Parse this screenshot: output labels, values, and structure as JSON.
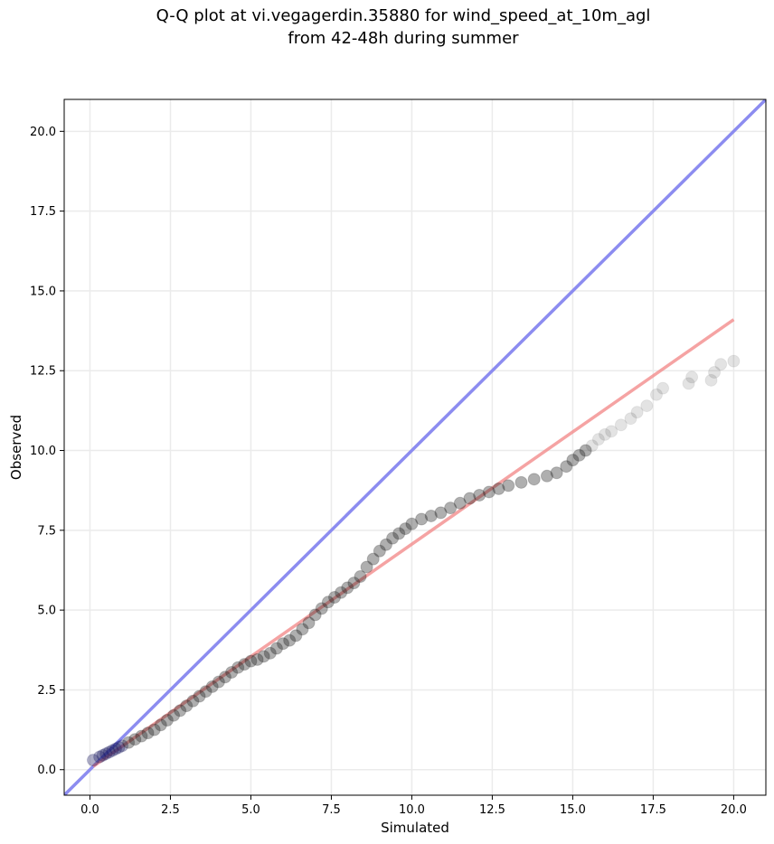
{
  "chart_data": {
    "type": "scatter",
    "title_lines": [
      "Q-Q plot at vi.vegagerdin.35880 for wind_speed_at_10m_agl",
      "from 42-48h during summer"
    ],
    "xlabel": "Simulated",
    "ylabel": "Observed",
    "xlim": [
      -0.8,
      21.0
    ],
    "ylim": [
      -0.8,
      21.0
    ],
    "xticks": [
      0.0,
      2.5,
      5.0,
      7.5,
      10.0,
      12.5,
      15.0,
      17.5,
      20.0
    ],
    "xtick_labels": [
      "0.0",
      "2.5",
      "5.0",
      "7.5",
      "10.0",
      "12.5",
      "15.0",
      "17.5",
      "20.0"
    ],
    "yticks": [
      0.0,
      2.5,
      5.0,
      7.5,
      10.0,
      12.5,
      15.0,
      17.5,
      20.0
    ],
    "ytick_labels": [
      "0.0",
      "2.5",
      "5.0",
      "7.5",
      "10.0",
      "12.5",
      "15.0",
      "17.5",
      "20.0"
    ],
    "grid": true,
    "reference_line": {
      "color": "#8c8cf0",
      "points": [
        [
          -0.8,
          -0.8
        ],
        [
          21.0,
          21.0
        ]
      ]
    },
    "fit_line": {
      "color": "#f28c8c",
      "points": [
        [
          0.1,
          0.1
        ],
        [
          20.0,
          14.1
        ]
      ]
    },
    "marker_color": "#1a1a1a",
    "low_end_color": "#1a1a60",
    "points": [
      [
        0.1,
        0.3
      ],
      [
        0.3,
        0.4
      ],
      [
        0.4,
        0.45
      ],
      [
        0.5,
        0.5
      ],
      [
        0.6,
        0.55
      ],
      [
        0.7,
        0.6
      ],
      [
        0.8,
        0.65
      ],
      [
        0.9,
        0.7
      ],
      [
        1.0,
        0.75
      ],
      [
        1.2,
        0.85
      ],
      [
        1.4,
        0.95
      ],
      [
        1.6,
        1.05
      ],
      [
        1.8,
        1.15
      ],
      [
        2.0,
        1.25
      ],
      [
        2.2,
        1.4
      ],
      [
        2.4,
        1.55
      ],
      [
        2.6,
        1.7
      ],
      [
        2.8,
        1.85
      ],
      [
        3.0,
        2.0
      ],
      [
        3.2,
        2.15
      ],
      [
        3.4,
        2.3
      ],
      [
        3.6,
        2.45
      ],
      [
        3.8,
        2.6
      ],
      [
        4.0,
        2.75
      ],
      [
        4.2,
        2.9
      ],
      [
        4.4,
        3.05
      ],
      [
        4.6,
        3.2
      ],
      [
        4.8,
        3.3
      ],
      [
        5.0,
        3.4
      ],
      [
        5.2,
        3.45
      ],
      [
        5.4,
        3.55
      ],
      [
        5.6,
        3.65
      ],
      [
        5.8,
        3.8
      ],
      [
        6.0,
        3.95
      ],
      [
        6.2,
        4.05
      ],
      [
        6.4,
        4.2
      ],
      [
        6.6,
        4.4
      ],
      [
        6.8,
        4.6
      ],
      [
        7.0,
        4.85
      ],
      [
        7.2,
        5.05
      ],
      [
        7.4,
        5.25
      ],
      [
        7.6,
        5.4
      ],
      [
        7.8,
        5.55
      ],
      [
        8.0,
        5.7
      ],
      [
        8.2,
        5.85
      ],
      [
        8.4,
        6.05
      ],
      [
        8.6,
        6.35
      ],
      [
        8.8,
        6.6
      ],
      [
        9.0,
        6.85
      ],
      [
        9.2,
        7.05
      ],
      [
        9.4,
        7.25
      ],
      [
        9.6,
        7.4
      ],
      [
        9.8,
        7.55
      ],
      [
        10.0,
        7.7
      ],
      [
        10.3,
        7.85
      ],
      [
        10.6,
        7.95
      ],
      [
        10.9,
        8.05
      ],
      [
        11.2,
        8.2
      ],
      [
        11.5,
        8.35
      ],
      [
        11.8,
        8.5
      ],
      [
        12.1,
        8.6
      ],
      [
        12.4,
        8.7
      ],
      [
        12.7,
        8.8
      ],
      [
        13.0,
        8.9
      ],
      [
        13.4,
        9.0
      ],
      [
        13.8,
        9.1
      ],
      [
        14.2,
        9.2
      ],
      [
        14.5,
        9.3
      ],
      [
        14.8,
        9.5
      ],
      [
        15.0,
        9.7
      ],
      [
        15.2,
        9.85
      ],
      [
        15.4,
        10.0
      ],
      [
        15.6,
        10.15
      ],
      [
        15.8,
        10.35
      ],
      [
        16.0,
        10.5
      ],
      [
        16.2,
        10.6
      ],
      [
        16.5,
        10.8
      ],
      [
        16.8,
        11.0
      ],
      [
        17.0,
        11.2
      ],
      [
        17.3,
        11.4
      ],
      [
        17.6,
        11.75
      ],
      [
        17.8,
        11.95
      ],
      [
        18.6,
        12.1
      ],
      [
        18.7,
        12.3
      ],
      [
        19.3,
        12.2
      ],
      [
        19.4,
        12.45
      ],
      [
        19.6,
        12.7
      ],
      [
        20.0,
        12.8
      ]
    ]
  }
}
